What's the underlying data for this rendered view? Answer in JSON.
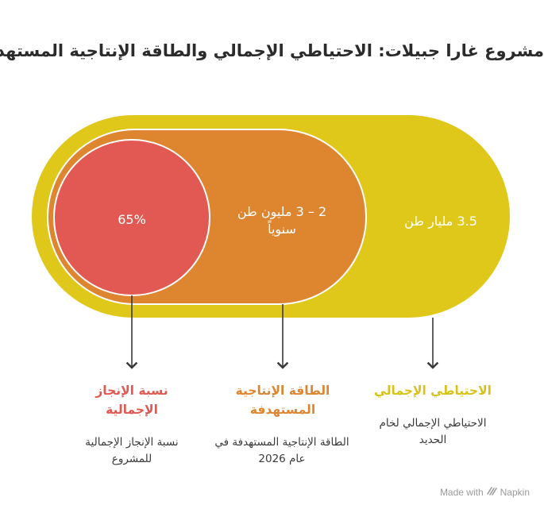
{
  "title": "مشروع غارا جبيلات: الاحتياطي الإجمالي والطاقة الإنتاجية المستهدفة",
  "colors": {
    "outer": "#DFC81A",
    "middle": "#DE8530",
    "inner": "#E25852",
    "outer_title": "#D8C21A",
    "middle_title": "#DE8530",
    "inner_title": "#E25852",
    "arrow": "#3a3a3a"
  },
  "shapes": {
    "outer_label": "3.5 مليار طن",
    "middle_label_line1": "2 – 3 مليون طن",
    "middle_label_line2": "سنوياً",
    "inner_label": "65%"
  },
  "captions": [
    {
      "title": "الاحتياطي الإجمالي",
      "desc_line1": "الاحتياطي الإجمالي لخام",
      "desc_line2": "الحديد"
    },
    {
      "title_line1": "الطاقة الإنتاجية",
      "title_line2": "المستهدفة",
      "desc_line1": "الطاقة الإنتاجية المستهدفة في",
      "desc_line2": "عام 2026"
    },
    {
      "title_line1": "نسبة الإنجاز",
      "title_line2": "الإجمالية",
      "desc_line1": "نسبة الإنجاز الإجمالية",
      "desc_line2": "للمشروع"
    }
  ],
  "watermark": {
    "text": "Made with",
    "brand": "Napkin",
    "icon": "napkin-logo-icon"
  }
}
